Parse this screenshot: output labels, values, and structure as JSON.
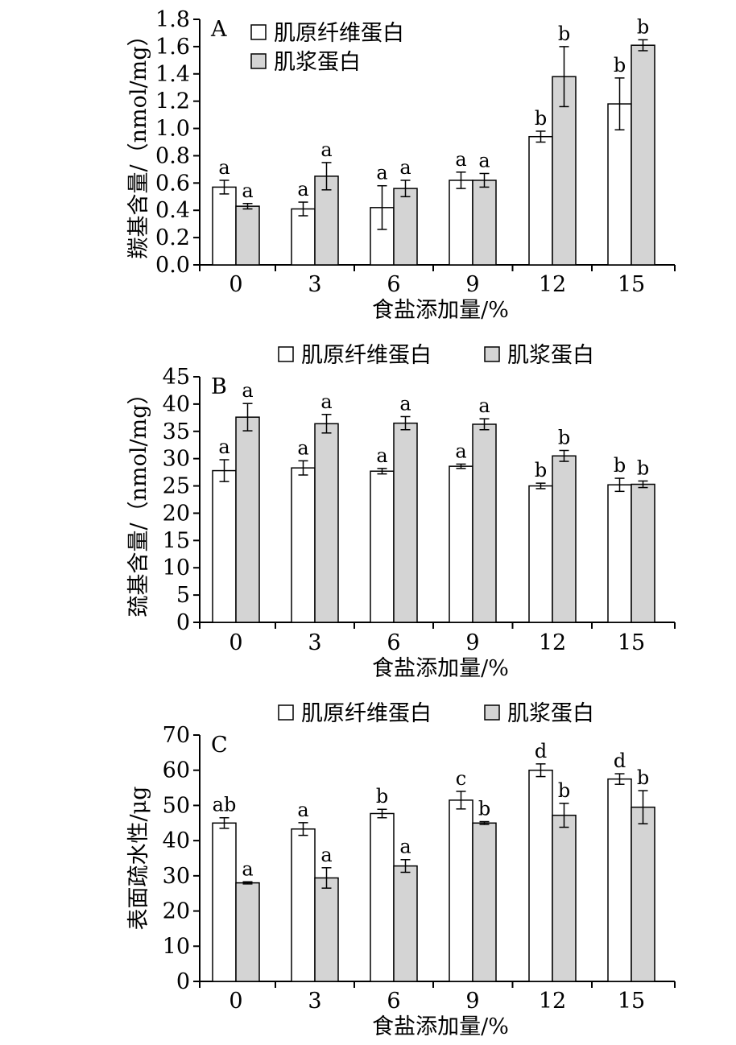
{
  "chart_data": [
    {
      "type": "bar",
      "panel_label": "A",
      "ylabel": "羰基含量/（nmol/mg）",
      "xlabel": "食盐添加量/%",
      "categories": [
        "0",
        "3",
        "6",
        "9",
        "12",
        "15"
      ],
      "ylim": [
        0,
        1.8
      ],
      "yticks": [
        "0.0",
        "0.2",
        "0.4",
        "0.6",
        "0.8",
        "1.0",
        "1.2",
        "1.4",
        "1.6",
        "1.8"
      ],
      "legend_position": "top-left",
      "series": [
        {
          "name": "肌原纤维蛋白",
          "color": "#ffffff",
          "values": [
            0.57,
            0.41,
            0.42,
            0.62,
            0.94,
            1.18
          ],
          "errors": [
            0.05,
            0.05,
            0.16,
            0.06,
            0.04,
            0.19
          ],
          "letters": [
            "a",
            "a",
            "a",
            "a",
            "b",
            "b"
          ]
        },
        {
          "name": "肌浆蛋白",
          "color": "#d4d4d4",
          "values": [
            0.43,
            0.65,
            0.56,
            0.62,
            1.38,
            1.61
          ],
          "errors": [
            0.02,
            0.1,
            0.06,
            0.05,
            0.22,
            0.04
          ],
          "letters": [
            "a",
            "a",
            "a",
            "a",
            "b",
            "b"
          ]
        }
      ]
    },
    {
      "type": "bar",
      "panel_label": "B",
      "ylabel": "巯基含量/（nmol/mg）",
      "xlabel": "食盐添加量/%",
      "categories": [
        "0",
        "3",
        "6",
        "9",
        "12",
        "15"
      ],
      "ylim": [
        0,
        45
      ],
      "yticks": [
        "0",
        "5",
        "10",
        "15",
        "20",
        "25",
        "30",
        "35",
        "40",
        "45"
      ],
      "legend_position": "top",
      "series": [
        {
          "name": "肌原纤维蛋白",
          "color": "#ffffff",
          "values": [
            27.8,
            28.3,
            27.7,
            28.6,
            25.0,
            25.2
          ],
          "errors": [
            2.0,
            1.3,
            0.5,
            0.4,
            0.5,
            1.2
          ],
          "letters": [
            "a",
            "a",
            "a",
            "a",
            "b",
            "b"
          ]
        },
        {
          "name": "肌浆蛋白",
          "color": "#d4d4d4",
          "values": [
            37.6,
            36.4,
            36.5,
            36.3,
            30.5,
            25.3
          ],
          "errors": [
            2.5,
            1.7,
            1.2,
            1.0,
            1.0,
            0.6
          ],
          "letters": [
            "a",
            "a",
            "a",
            "a",
            "b",
            "b"
          ]
        }
      ]
    },
    {
      "type": "bar",
      "panel_label": "C",
      "ylabel": "表面疏水性/μg",
      "xlabel": "食盐添加量/%",
      "categories": [
        "0",
        "3",
        "6",
        "9",
        "12",
        "15"
      ],
      "ylim": [
        0,
        70
      ],
      "yticks": [
        "0",
        "10",
        "20",
        "30",
        "40",
        "50",
        "60",
        "70"
      ],
      "legend_position": "top",
      "series": [
        {
          "name": "肌原纤维蛋白",
          "color": "#ffffff",
          "values": [
            45.0,
            43.3,
            47.7,
            51.5,
            60.0,
            57.5
          ],
          "errors": [
            1.5,
            1.8,
            1.2,
            2.5,
            1.8,
            1.5
          ],
          "letters": [
            "ab",
            "a",
            "b",
            "c",
            "d",
            "d"
          ]
        },
        {
          "name": "肌浆蛋白",
          "color": "#d4d4d4",
          "values": [
            28.0,
            29.4,
            32.8,
            45.0,
            47.2,
            49.5
          ],
          "errors": [
            0.3,
            2.9,
            1.8,
            0.4,
            3.4,
            4.7
          ],
          "letters": [
            "a",
            "a",
            "a",
            "b",
            "b",
            "b"
          ]
        }
      ]
    }
  ]
}
